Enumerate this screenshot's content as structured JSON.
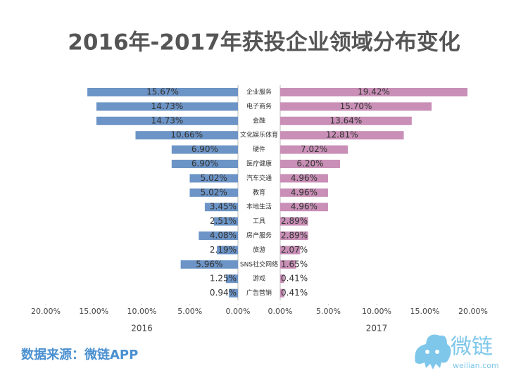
{
  "chart_data": {
    "type": "butterfly",
    "title": "2016年-2017年获投企业领域分布变化",
    "categories": [
      "企业服务",
      "电子商务",
      "金融",
      "文化娱乐体育",
      "硬件",
      "医疗健康",
      "汽车交通",
      "教育",
      "本地生活",
      "工具",
      "房产服务",
      "旅游",
      "SNS社交网络",
      "游戏",
      "广告营销"
    ],
    "series": [
      {
        "name": "2016",
        "color": "#6c94c6",
        "side": "left",
        "values": [
          15.67,
          14.73,
          14.73,
          10.66,
          6.9,
          6.9,
          5.02,
          5.02,
          3.45,
          2.51,
          4.08,
          2.19,
          5.96,
          1.25,
          0.94
        ],
        "value_labels": [
          "15.67%",
          "14.73%",
          "14.73%",
          "10.66%",
          "6.90%",
          "6.90%",
          "5.02%",
          "5.02%",
          "3.45%",
          "2.51%",
          "4.08%",
          "2.19%",
          "5.96%",
          "1.25%",
          "0.94%"
        ],
        "xlim": [
          20,
          0
        ],
        "xticks": [
          {
            "value": 20,
            "label": "20.00%"
          },
          {
            "value": 15,
            "label": "15.00%"
          },
          {
            "value": 10,
            "label": "10.00%"
          },
          {
            "value": 5,
            "label": "5.00%"
          },
          {
            "value": 0,
            "label": "0.00%"
          }
        ]
      },
      {
        "name": "2017",
        "color": "#c98fb6",
        "side": "right",
        "values": [
          19.42,
          15.7,
          13.64,
          12.81,
          7.02,
          6.2,
          4.96,
          4.96,
          4.96,
          2.89,
          2.89,
          2.07,
          1.65,
          0.41,
          0.41
        ],
        "value_labels": [
          "19.42%",
          "15.70%",
          "13.64%",
          "12.81%",
          "7.02%",
          "6.20%",
          "4.96%",
          "4.96%",
          "4.96%",
          "2.89%",
          "2.89%",
          "2.07%",
          "1.65%",
          "0.41%",
          "0.41%"
        ],
        "xlim": [
          0,
          20
        ],
        "xticks": [
          {
            "value": 0,
            "label": "0.00%"
          },
          {
            "value": 5,
            "label": "5.00%"
          },
          {
            "value": 10,
            "label": "10.00%"
          },
          {
            "value": 15,
            "label": "15.00%"
          },
          {
            "value": 20,
            "label": "20.00%"
          }
        ]
      }
    ],
    "source": "数据来源：微链APP",
    "logo": {
      "name": "微链",
      "url": "weilian.com"
    }
  }
}
